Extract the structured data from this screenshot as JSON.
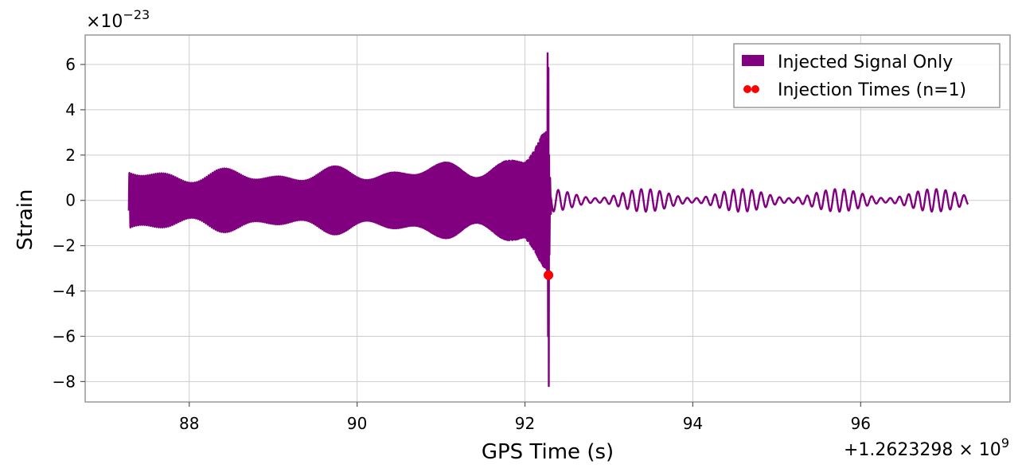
{
  "chart_data": {
    "type": "line",
    "title": "",
    "xlabel": "GPS Time (s)",
    "ylabel": "Strain",
    "x_offset_label": "+1.2623298 × 10",
    "x_offset_exponent": "9",
    "y_scale_label": "×10",
    "y_scale_exponent": "−23",
    "xlim": [
      86.76,
      97.78
    ],
    "ylim": [
      -8.9,
      7.3
    ],
    "xticks": [
      88,
      90,
      92,
      94,
      96
    ],
    "xtick_labels": [
      "88",
      "90",
      "92",
      "94",
      "96"
    ],
    "yticks": [
      6,
      4,
      2,
      0,
      -2,
      -4,
      -6,
      -8
    ],
    "ytick_labels": [
      "6",
      "4",
      "2",
      "0",
      "−2",
      "−4",
      "−6",
      "−8"
    ],
    "grid": true,
    "legend_position": "top-right",
    "series": [
      {
        "name": "Injected Signal Only",
        "kind": "line",
        "color": "#800080",
        "t_start": 87.28,
        "t_merger": 92.28,
        "t_end": 97.28,
        "peak_positive": 6.5,
        "peak_negative": -8.2,
        "pre_merger_envelope": [
          {
            "t": 87.28,
            "amp": 1.5
          },
          {
            "t": 89.0,
            "amp": 1.4
          },
          {
            "t": 91.0,
            "amp": 1.7
          },
          {
            "t": 92.0,
            "amp": 2.2
          },
          {
            "t": 92.2,
            "amp": 3.5
          }
        ],
        "post_merger_amp": 0.5
      },
      {
        "name": "Injection Times (n=1)",
        "kind": "scatter",
        "color": "#ff0000",
        "x": [
          92.28
        ],
        "y": [
          -3.3
        ]
      }
    ]
  }
}
